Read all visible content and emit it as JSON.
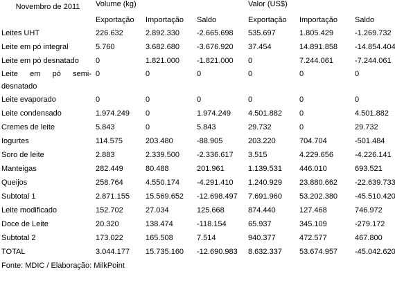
{
  "header": {
    "title": "Novembro de 2011",
    "groups": [
      "Volume (kg)",
      "Valor (US$)"
    ],
    "columns": [
      "Exportação",
      "Importação",
      "Saldo",
      "Exportação",
      "Importação",
      "Saldo"
    ]
  },
  "table": {
    "rows": [
      {
        "label": "Leites UHT",
        "values": [
          "226.632",
          "2.892.330",
          "-2.665.698",
          "535.697",
          "1.805.429",
          "-1.269.732"
        ]
      },
      {
        "label": "Leite em pó integral",
        "values": [
          "5.760",
          "3.682.680",
          "-3.676.920",
          "37.454",
          "14.891.858",
          "-14.854.404"
        ]
      },
      {
        "label": "Leite em pó desnatado",
        "values": [
          "0",
          "1.821.000",
          "-1.821.000",
          "0",
          "7.244.061",
          "-7.244.061"
        ]
      },
      {
        "label": "Leite em pó semi-desnatado",
        "values": [
          "0",
          "0",
          "0",
          "0",
          "0",
          "0"
        ]
      },
      {
        "label": "Leite evaporado",
        "values": [
          "0",
          "0",
          "0",
          "0",
          "0",
          "0"
        ]
      },
      {
        "label": "Leite condensado",
        "values": [
          "1.974.249",
          "0",
          "1.974.249",
          "4.501.882",
          "0",
          "4.501.882"
        ]
      },
      {
        "label": "Cremes de leite",
        "values": [
          "5.843",
          "0",
          "5.843",
          "29.732",
          "0",
          "29.732"
        ]
      },
      {
        "label": "Iogurtes",
        "values": [
          "114.575",
          "203.480",
          "-88.905",
          "203.220",
          "704.704",
          "-501.484"
        ]
      },
      {
        "label": "Soro de leite",
        "values": [
          "2.883",
          "2.339.500",
          "-2.336.617",
          "3.515",
          "4.229.656",
          "-4.226.141"
        ]
      },
      {
        "label": "Manteigas",
        "values": [
          "282.449",
          "80.488",
          "201.961",
          "1.139.531",
          "446.010",
          "693.521"
        ]
      },
      {
        "label": "Queijos",
        "values": [
          "258.764",
          "4.550.174",
          "-4.291.410",
          "1.240.929",
          "23.880.662",
          "-22.639.733"
        ]
      },
      {
        "label": "Subtotal 1",
        "values": [
          "2.871.155",
          "15.569.652",
          "-12.698.497",
          "7.691.960",
          "53.202.380",
          "-45.510.420"
        ]
      },
      {
        "label": "Leite modificado",
        "values": [
          "152.702",
          "27.034",
          "125.668",
          "874.440",
          "127.468",
          "746.972"
        ]
      },
      {
        "label": "Doce de Leite",
        "values": [
          "20.320",
          "138.474",
          "-118.154",
          "65.937",
          "345.109",
          "-279.172"
        ]
      },
      {
        "label": "Subtotal 2",
        "values": [
          "173.022",
          "165.508",
          "7.514",
          "940.377",
          "472.577",
          "467.800"
        ]
      },
      {
        "label": "TOTAL",
        "values": [
          "3.044.177",
          "15.735.160",
          "-12.690.983",
          "8.632.337",
          "53.674.957",
          "-45.042.620"
        ]
      }
    ]
  },
  "source": "Fonte: MDIC / Elaboração: MilkPoint"
}
